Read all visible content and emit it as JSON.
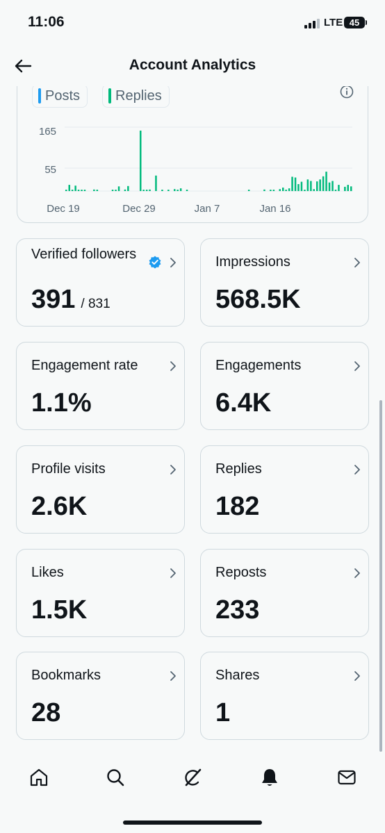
{
  "status_bar": {
    "time": "11:06",
    "network": "LTE",
    "battery": "45"
  },
  "header": {
    "title": "Account Analytics"
  },
  "chart": {
    "legend": [
      {
        "label": "Posts",
        "color": "#1d9bf0"
      },
      {
        "label": "Replies",
        "color": "#00ba7c"
      }
    ],
    "icons": {
      "info": "info-icon"
    }
  },
  "chart_data": {
    "type": "bar",
    "y_ticks": [
      "165",
      "55"
    ],
    "x_tick_labels": [
      "Dec 19",
      "Dec 29",
      "Jan 7",
      "Jan 16"
    ],
    "ylim": [
      0,
      175
    ],
    "grid": true,
    "legend_placement": "top-left",
    "series": [
      {
        "name": "Posts",
        "color": "#1d9bf0",
        "values": []
      },
      {
        "name": "Replies",
        "color": "#00ba7c",
        "values": [
          3,
          16,
          3,
          14,
          2,
          1,
          3,
          0,
          0,
          4,
          3,
          0,
          0,
          0,
          0,
          2,
          3,
          12,
          0,
          4,
          13,
          0,
          0,
          0,
          156,
          2,
          1,
          4,
          0,
          40,
          0,
          2,
          0,
          1,
          0,
          5,
          2,
          7,
          0,
          3,
          0,
          0,
          0,
          0,
          0,
          0,
          0,
          0,
          0,
          0,
          0,
          0,
          0,
          0,
          0,
          0,
          0,
          0,
          0,
          1,
          0,
          0,
          0,
          0,
          4,
          0,
          2,
          3,
          0,
          5,
          9,
          1,
          7,
          37,
          35,
          18,
          24,
          2,
          30,
          26,
          5,
          25,
          30,
          38,
          50,
          22,
          26,
          3,
          16,
          0,
          11,
          16,
          12
        ]
      }
    ]
  },
  "stats": [
    {
      "label": "Verified followers",
      "value": "391",
      "sub": "/ 831",
      "verified": true
    },
    {
      "label": "Impressions",
      "value": "568.5K"
    },
    {
      "label": "Engagement rate",
      "value": "1.1%"
    },
    {
      "label": "Engagements",
      "value": "6.4K"
    },
    {
      "label": "Profile visits",
      "value": "2.6K"
    },
    {
      "label": "Replies",
      "value": "182"
    },
    {
      "label": "Likes",
      "value": "1.5K"
    },
    {
      "label": "Reposts",
      "value": "233"
    },
    {
      "label": "Bookmarks",
      "value": "28"
    },
    {
      "label": "Shares",
      "value": "1"
    }
  ],
  "bottom_nav": {
    "items": [
      {
        "icon": "home-icon"
      },
      {
        "icon": "search-icon"
      },
      {
        "icon": "grok-icon"
      },
      {
        "icon": "notifications-icon"
      },
      {
        "icon": "messages-icon"
      }
    ]
  }
}
